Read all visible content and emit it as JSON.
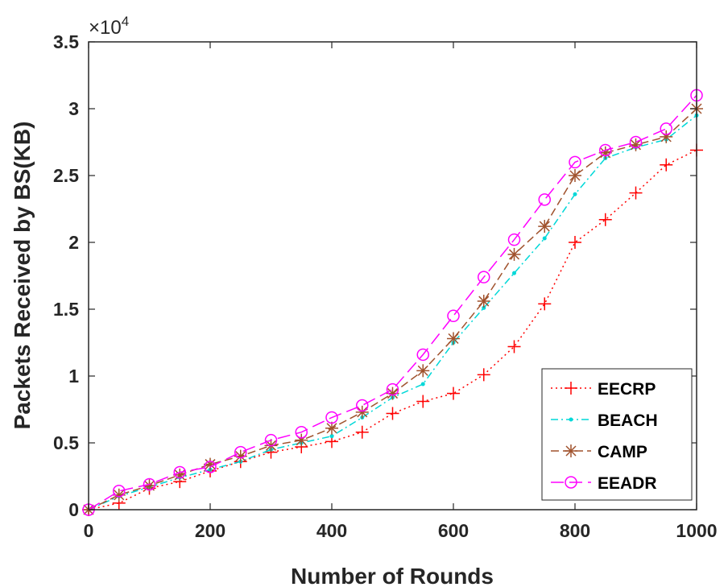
{
  "chart_data": {
    "type": "line",
    "xlabel": "Number of Rounds",
    "ylabel": "Packets Received by BS(KB)",
    "xlim": [
      0,
      1000
    ],
    "ylim": [
      0,
      35000
    ],
    "x_ticks": [
      0,
      200,
      400,
      600,
      800,
      1000
    ],
    "x_tick_labels": [
      "0",
      "200",
      "400",
      "600",
      "800",
      "1000"
    ],
    "y_ticks": [
      0,
      5000,
      10000,
      15000,
      20000,
      25000,
      30000,
      35000
    ],
    "y_tick_labels": [
      "0",
      "0.5",
      "1",
      "1.5",
      "2",
      "2.5",
      "3",
      "3.5"
    ],
    "y_exponent_label": "×10",
    "y_exponent_power": "4",
    "grid": false,
    "legend_position": "bottom-right",
    "x": [
      0,
      50,
      100,
      150,
      200,
      250,
      300,
      350,
      400,
      450,
      500,
      550,
      600,
      650,
      700,
      750,
      800,
      850,
      900,
      950,
      1000
    ],
    "series": [
      {
        "name": "EECRP",
        "color": "#ff0000",
        "line_style": "dotted",
        "marker": "plus",
        "values": [
          0,
          500,
          1600,
          2100,
          2900,
          3600,
          4300,
          4700,
          5100,
          5800,
          7200,
          8100,
          8700,
          10100,
          12200,
          15400,
          20000,
          21700,
          23700,
          25800,
          26900
        ]
      },
      {
        "name": "BEACH",
        "color": "#00d8d8",
        "line_style": "dashdot",
        "marker": "dot",
        "values": [
          0,
          1000,
          1700,
          2400,
          3000,
          3600,
          4500,
          5000,
          5500,
          6900,
          8400,
          9400,
          12500,
          15100,
          17700,
          20300,
          23600,
          26300,
          27100,
          27700,
          29500
        ]
      },
      {
        "name": "CAMP",
        "color": "#a0522d",
        "line_style": "dashed",
        "marker": "asterisk",
        "values": [
          0,
          1100,
          1800,
          2600,
          3400,
          4000,
          4800,
          5200,
          6100,
          7300,
          8700,
          10400,
          12800,
          15600,
          19100,
          21200,
          25000,
          26700,
          27300,
          27900,
          30000
        ]
      },
      {
        "name": "EEADR",
        "color": "#ff00ff",
        "line_style": "longdash",
        "marker": "circle",
        "values": [
          0,
          1400,
          1900,
          2800,
          3200,
          4300,
          5200,
          5800,
          6900,
          7800,
          9000,
          11600,
          14500,
          17400,
          20200,
          23200,
          26000,
          26900,
          27500,
          28500,
          31000
        ]
      }
    ]
  }
}
